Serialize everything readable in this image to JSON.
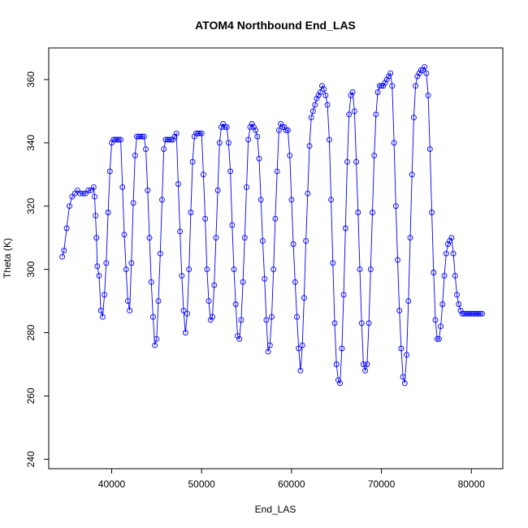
{
  "chart_data": {
    "type": "scatter",
    "title": "ATOM4 Northbound End_LAS",
    "xlabel": "End_LAS",
    "ylabel": "Theta (K)",
    "xlim": [
      33000,
      83500
    ],
    "ylim": [
      237000,
      370000
    ],
    "ylim_units": "K x 1000 scaled below",
    "x_ticks": [
      40000,
      50000,
      60000,
      70000,
      80000
    ],
    "x_tick_labels": [
      "40000",
      "50000",
      "60000",
      "70000",
      "80000"
    ],
    "y_ticks": [
      240,
      260,
      280,
      300,
      320,
      340,
      360
    ],
    "y_tick_labels": [
      "240",
      "260",
      "280",
      "300",
      "320",
      "340",
      "360"
    ],
    "y_range": [
      237,
      370
    ],
    "grid": false,
    "legend": "none",
    "series_color": "#0000ff",
    "marker": "open-circle",
    "connect_points": true,
    "series": [
      {
        "x": [
          34500,
          34700,
          35000,
          35300,
          35600,
          35900,
          36200,
          36500,
          36800,
          37100,
          37400,
          37700,
          38000,
          38100,
          38200,
          38300,
          38400,
          38600,
          38800,
          39000,
          39200,
          39400,
          39600,
          39800,
          40000,
          40200,
          40400,
          40600,
          40800,
          41000,
          41200,
          41400,
          41600,
          41800,
          42000,
          42200,
          42400,
          42600,
          42800,
          43000,
          43200,
          43400,
          43600,
          43800,
          44000,
          44200,
          44400,
          44600,
          44800,
          45000,
          45200,
          45400,
          45600,
          45800,
          46000,
          46200,
          46400,
          46600,
          46800,
          47000,
          47200,
          47400,
          47600,
          47800,
          48000,
          48200,
          48400,
          48600,
          48800,
          49000,
          49200,
          49400,
          49600,
          49800,
          50000,
          50200,
          50400,
          50600,
          50800,
          51000,
          51200,
          51400,
          51600,
          51800,
          52000,
          52200,
          52400,
          52600,
          52800,
          53000,
          53200,
          53400,
          53600,
          53800,
          54000,
          54200,
          54400,
          54600,
          54800,
          55000,
          55200,
          55400,
          55600,
          55800,
          56000,
          56200,
          56400,
          56600,
          56800,
          57000,
          57200,
          57400,
          57600,
          57800,
          58000,
          58200,
          58400,
          58600,
          58800,
          59000,
          59200,
          59400,
          59600,
          59800,
          60000,
          60200,
          60400,
          60600,
          60800,
          61000,
          61200,
          61400,
          61600,
          61800,
          62000,
          62200,
          62400,
          62600,
          62800,
          63000,
          63200,
          63400,
          63600,
          63800,
          64000,
          64200,
          64400,
          64600,
          64800,
          65000,
          65200,
          65400,
          65600,
          65800,
          66000,
          66200,
          66400,
          66600,
          66800,
          67000,
          67200,
          67400,
          67600,
          67800,
          68000,
          68200,
          68400,
          68600,
          68800,
          69000,
          69200,
          69400,
          69600,
          69800,
          70000,
          70200,
          70400,
          70600,
          70800,
          71000,
          71200,
          71400,
          71600,
          71800,
          72000,
          72200,
          72400,
          72600,
          72800,
          73000,
          73200,
          73400,
          73600,
          73800,
          74000,
          74200,
          74400,
          74600,
          74800,
          75000,
          75200,
          75400,
          75600,
          75800,
          76000,
          76200,
          76400,
          76600,
          76800,
          77000,
          77200,
          77400,
          77600,
          77800,
          78000,
          78200,
          78400,
          78600,
          78800,
          79000,
          79200,
          79400,
          79600,
          79800,
          80000,
          80200,
          80400,
          80600,
          80800,
          81000,
          81200
        ],
        "y": [
          304,
          306,
          313,
          320,
          323,
          324,
          325,
          324,
          324,
          324,
          325,
          325,
          326,
          323,
          317,
          310,
          301,
          298,
          287,
          285,
          292,
          302,
          318,
          331,
          340,
          341,
          341,
          341,
          341,
          341,
          326,
          311,
          300,
          290,
          287,
          302,
          321,
          336,
          342,
          342,
          342,
          342,
          342,
          338,
          325,
          310,
          296,
          285,
          276,
          278,
          290,
          305,
          322,
          338,
          341,
          341,
          341,
          341,
          341,
          342,
          343,
          327,
          312,
          298,
          287,
          280,
          286,
          300,
          318,
          334,
          342,
          343,
          343,
          343,
          343,
          330,
          316,
          300,
          290,
          284,
          285,
          295,
          310,
          325,
          340,
          345,
          346,
          345,
          345,
          340,
          331,
          314,
          300,
          289,
          279,
          278,
          284,
          296,
          310,
          326,
          341,
          345,
          346,
          345,
          344,
          342,
          335,
          322,
          309,
          297,
          284,
          274,
          276,
          285,
          300,
          316,
          331,
          344,
          346,
          345,
          345,
          344,
          344,
          336,
          322,
          308,
          296,
          285,
          275,
          268,
          276,
          291,
          309,
          324,
          339,
          348,
          350,
          352,
          354,
          355,
          356,
          358,
          357,
          355,
          352,
          341,
          322,
          302,
          283,
          270,
          265,
          264,
          275,
          292,
          313,
          334,
          349,
          355,
          356,
          350,
          334,
          318,
          300,
          283,
          270,
          268,
          270,
          283,
          300,
          318,
          336,
          349,
          356,
          358,
          358,
          358,
          359,
          360,
          361,
          362,
          358,
          340,
          320,
          303,
          287,
          275,
          266,
          264,
          273,
          290,
          310,
          330,
          348,
          358,
          361,
          362,
          363,
          363,
          364,
          362,
          355,
          338,
          318,
          299,
          284,
          278,
          278,
          282,
          289,
          298,
          305,
          308,
          309,
          310,
          305,
          298,
          292,
          289,
          287,
          286,
          286,
          286,
          286,
          286,
          286,
          286,
          286,
          286,
          286,
          286,
          286
        ]
      }
    ]
  }
}
